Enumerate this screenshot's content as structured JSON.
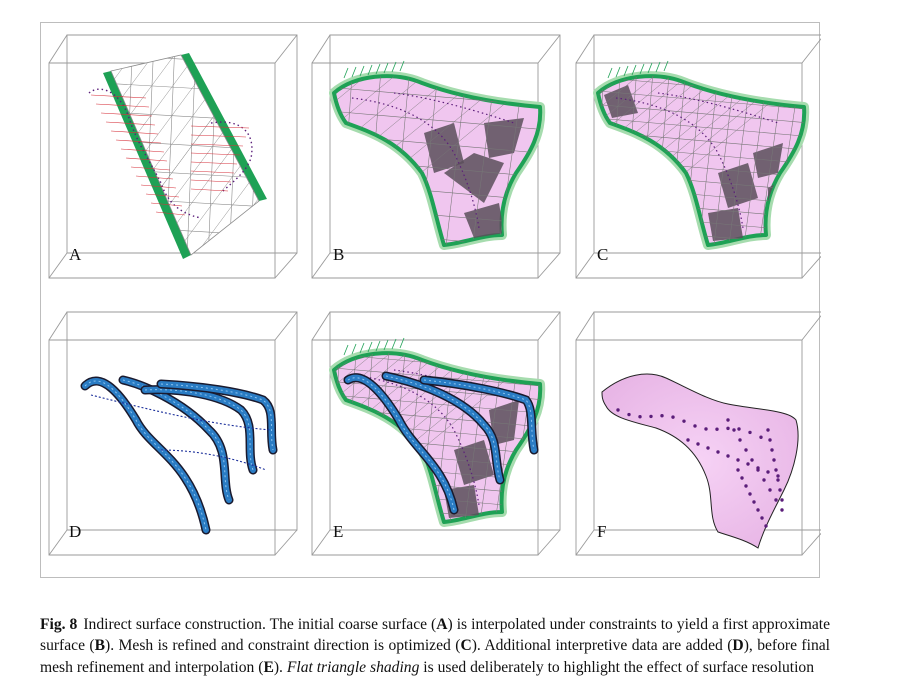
{
  "figure": {
    "panels": [
      {
        "label": "A"
      },
      {
        "label": "B"
      },
      {
        "label": "C"
      },
      {
        "label": "D"
      },
      {
        "label": "E"
      },
      {
        "label": "F"
      }
    ]
  },
  "caption": {
    "label": "Fig. 8",
    "text_1": "Indirect surface construction. The initial coarse surface (",
    "ref_a": "A",
    "text_2": ") is interpolated under constraints to yield a first approximate surface (",
    "ref_b": "B",
    "text_3": "). Mesh is refined and constraint direction is optimized (",
    "ref_c": "C",
    "text_4": "). Additional interpretive data are added (",
    "ref_d": "D",
    "text_5": "), before final mesh refinement and interpolation (",
    "ref_e": "E",
    "text_6": "). ",
    "italic": "Flat triangle shading",
    "text_7": " is used deliberately to highlight the effect of surface resolution"
  },
  "colors": {
    "box_line": "#9a9a9a",
    "mesh_line": "#8c8c8c",
    "surface_pink": "#f0c6ef",
    "surface_dark": "#5a4f5a",
    "border_green": "#1ea155",
    "glow_green": "#a6dcae",
    "constraint_red": "#d6303a",
    "dot_purple": "#5b1e7a",
    "ribbon_blue": "#2a7cc4",
    "ribbon_dark": "#1a1a2e"
  }
}
